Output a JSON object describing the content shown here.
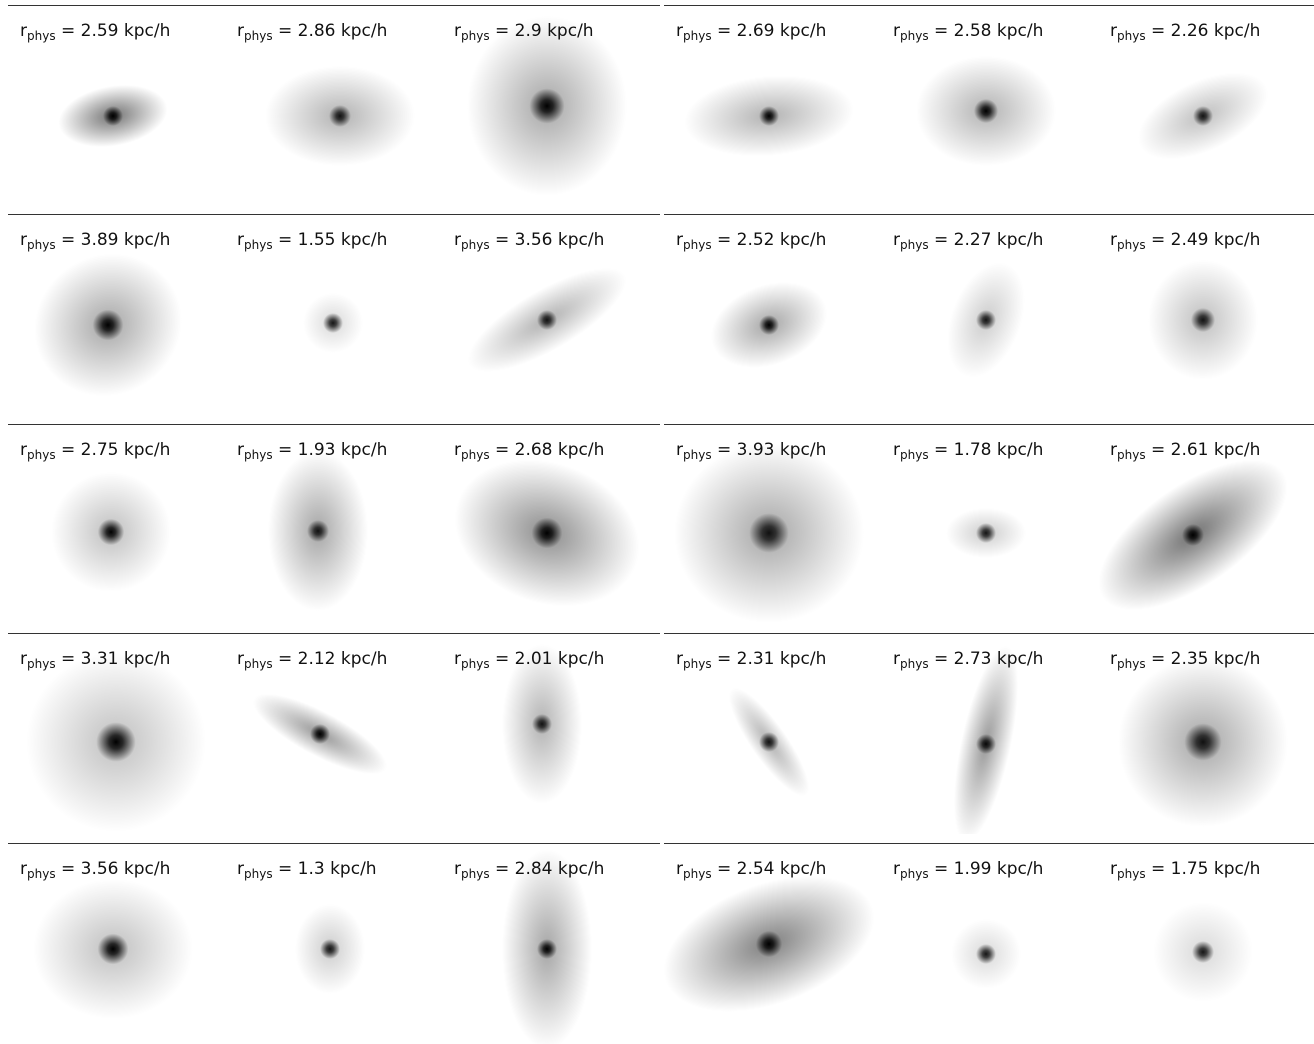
{
  "label": {
    "symbol": "r",
    "subscript": "phys",
    "equals": "=",
    "unit": "kpc/h"
  },
  "rows": [
    [
      "2.59",
      "2.86",
      "2.9",
      "2.69",
      "2.58",
      "2.26"
    ],
    [
      "3.89",
      "1.55",
      "3.56",
      "2.52",
      "2.27",
      "2.49"
    ],
    [
      "2.75",
      "1.93",
      "2.68",
      "3.93",
      "1.78",
      "2.61"
    ],
    [
      "3.31",
      "2.12",
      "2.01",
      "2.31",
      "2.73",
      "2.35"
    ],
    [
      "3.56",
      "1.3",
      "2.84",
      "2.54",
      "1.99",
      "1.75"
    ]
  ]
}
